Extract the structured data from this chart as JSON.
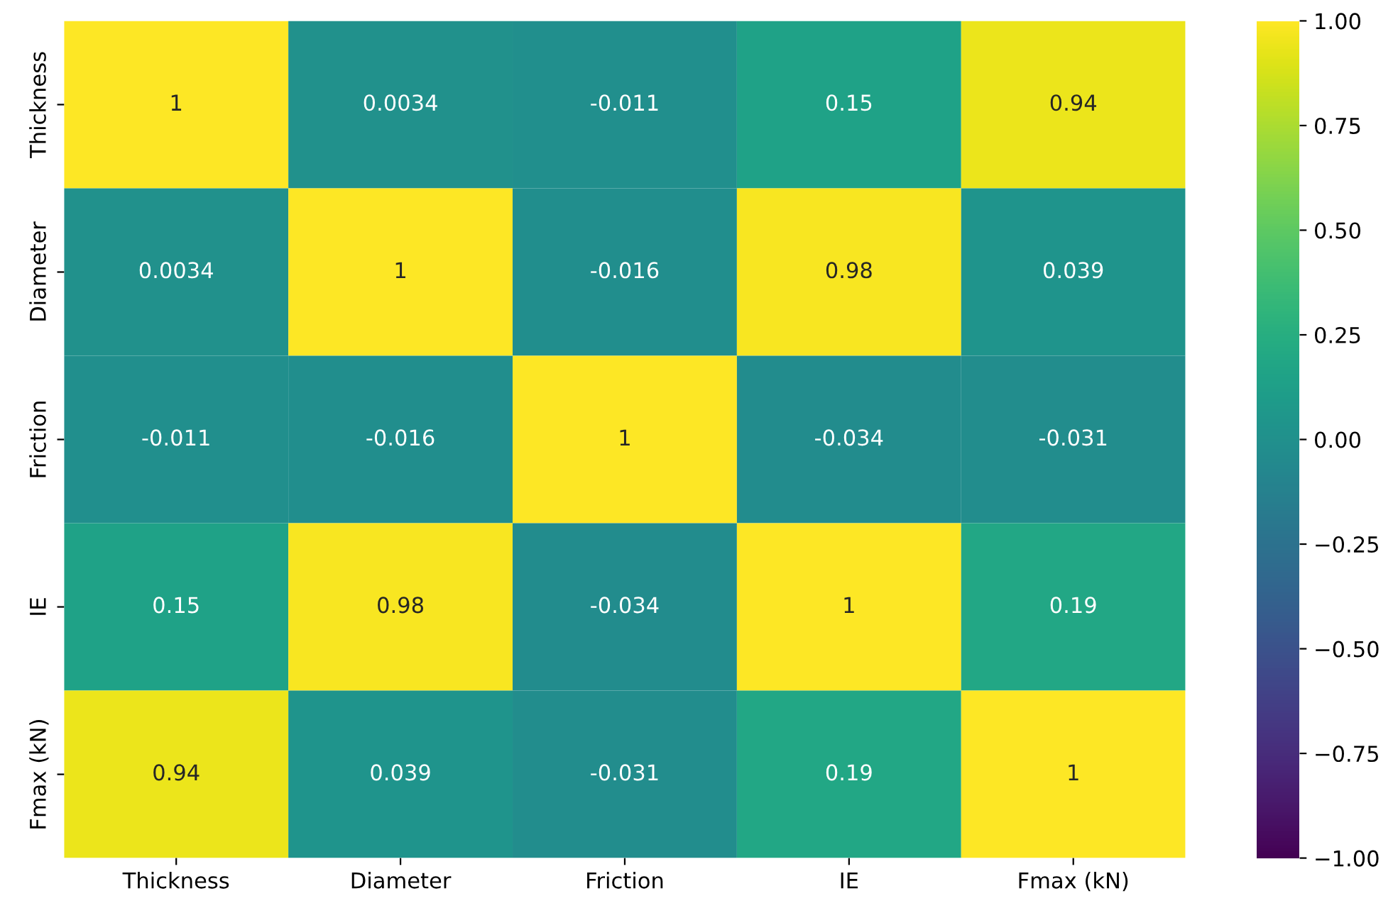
{
  "chart_data": {
    "type": "heatmap",
    "categories": [
      "Thickness",
      "Diameter",
      "Friction",
      "IE",
      "Fmax (kN)"
    ],
    "y_categories": [
      "Thickness",
      "Diameter",
      "Friction",
      "IE",
      "Fmax (kN)"
    ],
    "cells": [
      [
        1,
        0.0034,
        -0.011,
        0.15,
        0.94
      ],
      [
        0.0034,
        1,
        -0.016,
        0.98,
        0.039
      ],
      [
        -0.011,
        -0.016,
        1,
        -0.034,
        -0.031
      ],
      [
        0.15,
        0.98,
        -0.034,
        1,
        0.19
      ],
      [
        0.94,
        0.039,
        -0.031,
        0.19,
        1
      ]
    ],
    "data_labels": true,
    "clim": [
      -1,
      1
    ],
    "cticks": [
      {
        "value": -1,
        "label": "−1.00"
      },
      {
        "value": -0.75,
        "label": "−0.75"
      },
      {
        "value": -0.5,
        "label": "−0.50"
      },
      {
        "value": -0.25,
        "label": "−0.25"
      },
      {
        "value": 0,
        "label": "0.00"
      },
      {
        "value": 0.25,
        "label": "0.25"
      },
      {
        "value": 0.5,
        "label": "0.50"
      },
      {
        "value": 0.75,
        "label": "0.75"
      },
      {
        "value": 1,
        "label": "1.00"
      }
    ]
  }
}
